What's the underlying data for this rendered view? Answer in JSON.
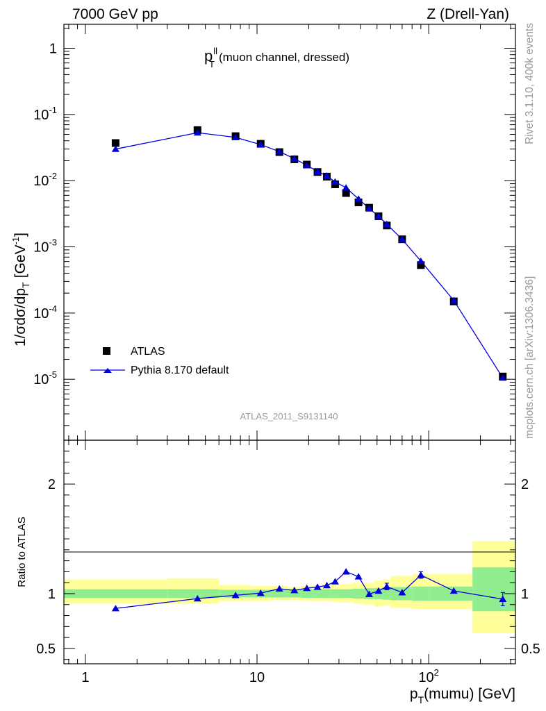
{
  "header": {
    "left": "7000 GeV pp",
    "right": "Z (Drell-Yan)"
  },
  "side_text": {
    "rivet": "Rivet 3.1.10,  400k events",
    "site": "mcplots.cern.ch [arXiv:1306.3436]"
  },
  "chart_data": [
    {
      "type": "scatter",
      "title": "p_T^ll (muon channel, dressed)",
      "title_main": "p",
      "title_sup": "ll",
      "title_sub": "T",
      "title_rest": "(muon channel, dressed)",
      "ylabel": "1/σdσ/dp_T [GeV^-1]",
      "ylabel_main": "1/σdσ/dp",
      "ylabel_sub": "T",
      "ylabel_unit": "[GeV",
      "ylabel_sup": "-1",
      "ylabel_close": "]",
      "xscale": "log",
      "yscale": "log",
      "xlim": [
        0.75,
        320
      ],
      "ylim": [
        1.2e-06,
        2.3
      ],
      "yticks": [
        {
          "v": 1,
          "base": "1",
          "exp": ""
        },
        {
          "v": 0.1,
          "base": "10",
          "exp": "-1"
        },
        {
          "v": 0.01,
          "base": "10",
          "exp": "-2"
        },
        {
          "v": 0.001,
          "base": "10",
          "exp": "-3"
        },
        {
          "v": 0.0001,
          "base": "10",
          "exp": "-4"
        },
        {
          "v": 1e-05,
          "base": "10",
          "exp": "-5"
        }
      ],
      "watermark": "ATLAS_2011_S9131140",
      "legend_position": "bottom-left",
      "series": [
        {
          "name": "ATLAS",
          "color": "#000000",
          "marker": "square",
          "x": [
            1.5,
            4.5,
            7.5,
            10.5,
            13.5,
            16.5,
            19.5,
            22.5,
            25.5,
            28.5,
            33.0,
            39.0,
            45.0,
            51.0,
            57.0,
            70.0,
            90.0,
            140.0,
            270.0
          ],
          "y": [
            0.037,
            0.058,
            0.047,
            0.036,
            0.027,
            0.021,
            0.0175,
            0.0135,
            0.0115,
            0.0088,
            0.0065,
            0.0047,
            0.0039,
            0.0029,
            0.0021,
            0.0013,
            0.00053,
            0.00015,
            1.1e-05
          ]
        },
        {
          "name": "Pythia 8.170 default",
          "color": "#0000dd",
          "marker": "triangle",
          "x": [
            1.5,
            4.5,
            7.5,
            10.5,
            13.5,
            16.5,
            19.5,
            22.5,
            25.5,
            28.5,
            33.0,
            39.0,
            45.0,
            51.0,
            57.0,
            70.0,
            90.0,
            140.0,
            270.0
          ],
          "y": [
            0.03,
            0.053,
            0.045,
            0.035,
            0.0275,
            0.0215,
            0.017,
            0.0138,
            0.0118,
            0.0096,
            0.0078,
            0.0053,
            0.0038,
            0.0029,
            0.0022,
            0.0013,
            0.00061,
            0.000155,
            1.05e-05
          ]
        }
      ]
    },
    {
      "type": "scatter",
      "ylabel": "Ratio to ATLAS",
      "xlabel": "p_T(mumu) [GeV]",
      "xlabel_main": "p",
      "xlabel_sub": "T",
      "xlabel_rest": "(mumu) [GeV]",
      "xscale": "log",
      "xlim": [
        0.75,
        320
      ],
      "ylim": [
        0.36,
        2.4
      ],
      "yticks": [
        {
          "v": 0.5,
          "label": "0.5"
        },
        {
          "v": 1,
          "label": "1"
        },
        {
          "v": 2,
          "label": "2"
        }
      ],
      "xticks": [
        {
          "v": 1,
          "base": "1",
          "exp": ""
        },
        {
          "v": 10,
          "base": "10",
          "exp": ""
        },
        {
          "v": 100,
          "base": "10",
          "exp": "2"
        }
      ],
      "bands": {
        "edges": [
          0.75,
          3,
          6,
          9,
          12,
          15,
          18,
          21,
          24,
          27,
          30,
          36,
          42,
          48,
          54,
          60,
          80,
          100,
          180,
          320
        ],
        "inner_color": "#90ee90",
        "outer_color": "#ffff99",
        "inner_lo": [
          0.96,
          0.96,
          0.965,
          0.965,
          0.965,
          0.965,
          0.96,
          0.96,
          0.96,
          0.96,
          0.96,
          0.955,
          0.95,
          0.95,
          0.945,
          0.94,
          0.935,
          0.935,
          0.84
        ],
        "inner_hi": [
          1.04,
          1.04,
          1.035,
          1.035,
          1.035,
          1.035,
          1.04,
          1.04,
          1.04,
          1.04,
          1.04,
          1.045,
          1.05,
          1.05,
          1.055,
          1.06,
          1.065,
          1.065,
          1.24
        ],
        "outer_lo": [
          0.91,
          0.91,
          0.93,
          0.935,
          0.94,
          0.94,
          0.935,
          0.93,
          0.93,
          0.925,
          0.92,
          0.91,
          0.9,
          0.88,
          0.89,
          0.87,
          0.86,
          0.86,
          0.64
        ],
        "outer_hi": [
          1.13,
          1.14,
          1.08,
          1.07,
          1.07,
          1.06,
          1.07,
          1.075,
          1.08,
          1.08,
          1.09,
          1.1,
          1.1,
          1.12,
          1.13,
          1.16,
          1.18,
          1.18,
          1.48
        ]
      },
      "series": [
        {
          "name": "Pythia 8.170 default",
          "color": "#0000dd",
          "marker": "triangle",
          "x": [
            1.5,
            4.5,
            7.5,
            10.5,
            13.5,
            16.5,
            19.5,
            22.5,
            25.5,
            28.5,
            33.0,
            39.0,
            45.0,
            51.0,
            57.0,
            70.0,
            90.0,
            140.0,
            270.0
          ],
          "y": [
            0.865,
            0.955,
            0.985,
            1.005,
            1.045,
            1.03,
            1.05,
            1.06,
            1.075,
            1.11,
            1.2,
            1.155,
            0.995,
            1.025,
            1.065,
            1.01,
            1.17,
            1.025,
            0.95
          ],
          "err": [
            0,
            0,
            0,
            0,
            0,
            0,
            0,
            0,
            0,
            0,
            0,
            0,
            0,
            0,
            0.03,
            0,
            0.03,
            0,
            0.06
          ]
        }
      ]
    }
  ]
}
